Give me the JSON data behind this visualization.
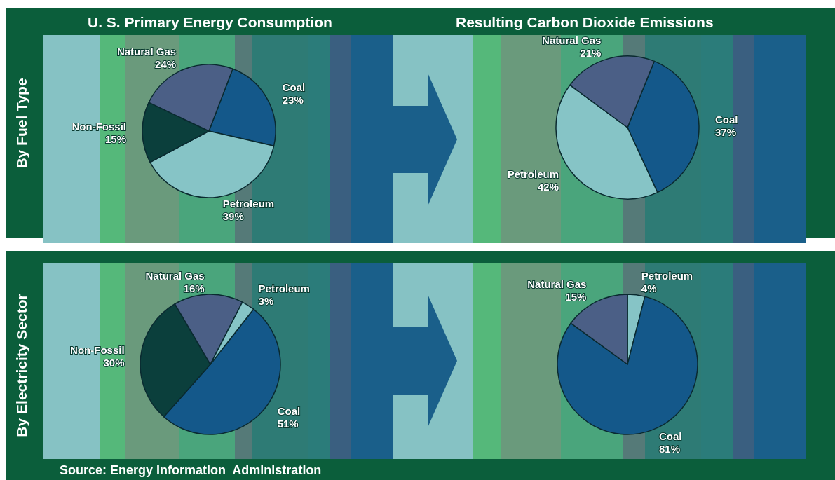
{
  "chart_data": [
    {
      "type": "pie",
      "title": "U. S. Primary Energy Consumption",
      "ylabel": "By Fuel Type",
      "categories": [
        "Coal",
        "Petroleum",
        "Non-Fossil",
        "Natural Gas"
      ],
      "values": [
        23,
        39,
        15,
        24
      ],
      "value_labels": [
        "23%",
        "39%",
        "15%",
        "24%"
      ],
      "colors": [
        "#14588a",
        "#86c4c6",
        "#0b3f3c",
        "#4b5f86"
      ]
    },
    {
      "type": "pie",
      "title": "Resulting Carbon Dioxide Emissions",
      "categories": [
        "Coal",
        "Petroleum",
        "Natural Gas"
      ],
      "values": [
        37,
        42,
        21
      ],
      "value_labels": [
        "37%",
        "42%",
        "21%"
      ],
      "colors": [
        "#14588a",
        "#86c4c6",
        "#4b5f86"
      ]
    },
    {
      "type": "pie",
      "ylabel": "By Electricity Sector",
      "categories": [
        "Coal",
        "Non-Fossil",
        "Natural Gas",
        "Petroleum"
      ],
      "values": [
        51,
        30,
        16,
        3
      ],
      "value_labels": [
        "51%",
        "30%",
        "16%",
        "3%"
      ],
      "colors": [
        "#14588a",
        "#0b3f3c",
        "#4b5f86",
        "#86c4c6"
      ],
      "annotations": [
        "Source: Energy Information  Administration"
      ]
    },
    {
      "type": "pie",
      "categories": [
        "Petroleum",
        "Coal",
        "Natural Gas"
      ],
      "values": [
        4,
        81,
        15
      ],
      "value_labels": [
        "4%",
        "81%",
        "15%"
      ],
      "colors": [
        "#86c4c6",
        "#14588a",
        "#4b5f86"
      ]
    }
  ]
}
